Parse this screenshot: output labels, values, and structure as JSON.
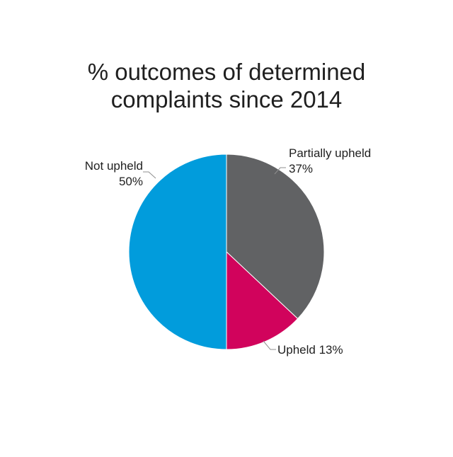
{
  "chart_data": {
    "type": "pie",
    "title_lines": [
      "% outcomes of determined",
      "complaints since 2014"
    ],
    "start_angle_deg": 0,
    "direction": "clockwise",
    "slices": [
      {
        "label": "Partially upheld",
        "value": 37,
        "display": "37%",
        "color": "#616264"
      },
      {
        "label": "Upheld",
        "value": 13,
        "display": "13%",
        "color": "#d1035c"
      },
      {
        "label": "Not upheld",
        "value": 50,
        "display": "50%",
        "color": "#019cdc"
      }
    ],
    "data_labels": {
      "partially_upheld": [
        "Partially upheld",
        "37%"
      ],
      "upheld": [
        "Upheld 13%"
      ],
      "not_upheld": [
        "Not upheld",
        "50%"
      ]
    }
  }
}
